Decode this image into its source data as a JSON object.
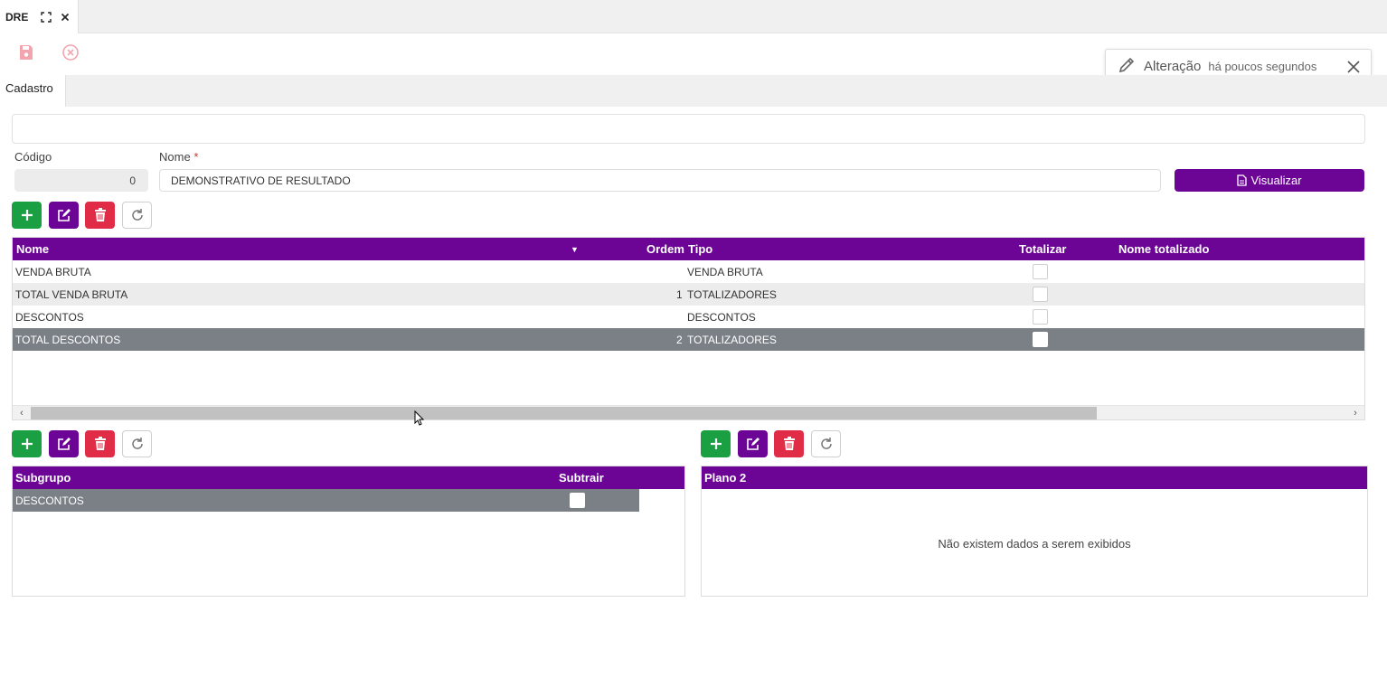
{
  "tabbar": {
    "tab_title": "DRE"
  },
  "toast": {
    "title": "Alteração",
    "time": "há poucos segundos"
  },
  "section_tab": "Cadastro",
  "form": {
    "codigo_label": "Código",
    "codigo_value": "0",
    "nome_label": "Nome",
    "nome_required": "*",
    "nome_value": "DEMONSTRATIVO DE RESULTADO",
    "visualizar_label": "Visualizar"
  },
  "main_grid": {
    "columns": [
      "Nome",
      "Ordem",
      "Tipo",
      "Totalizar",
      "Nome totalizado"
    ],
    "sort_icon": "▼",
    "rows": [
      {
        "nome": "VENDA BRUTA",
        "ordem": "",
        "tipo": "VENDA BRUTA"
      },
      {
        "nome": "TOTAL VENDA BRUTA",
        "ordem": "1",
        "tipo": "TOTALIZADORES"
      },
      {
        "nome": "DESCONTOS",
        "ordem": "",
        "tipo": "DESCONTOS"
      },
      {
        "nome": "TOTAL DESCONTOS",
        "ordem": "2",
        "tipo": "TOTALIZADORES"
      }
    ]
  },
  "subgroup_grid": {
    "columns": [
      "Subgrupo",
      "Subtrair"
    ],
    "rows": [
      {
        "subgrupo": "DESCONTOS"
      }
    ]
  },
  "plano_grid": {
    "columns": [
      "Plano 2"
    ],
    "empty_message": "Não existem dados a serem exibidos"
  },
  "colors": {
    "primary": "#6c0596",
    "add": "#1aa043",
    "delete": "#e02c47",
    "selected_row": "#7b8087"
  }
}
